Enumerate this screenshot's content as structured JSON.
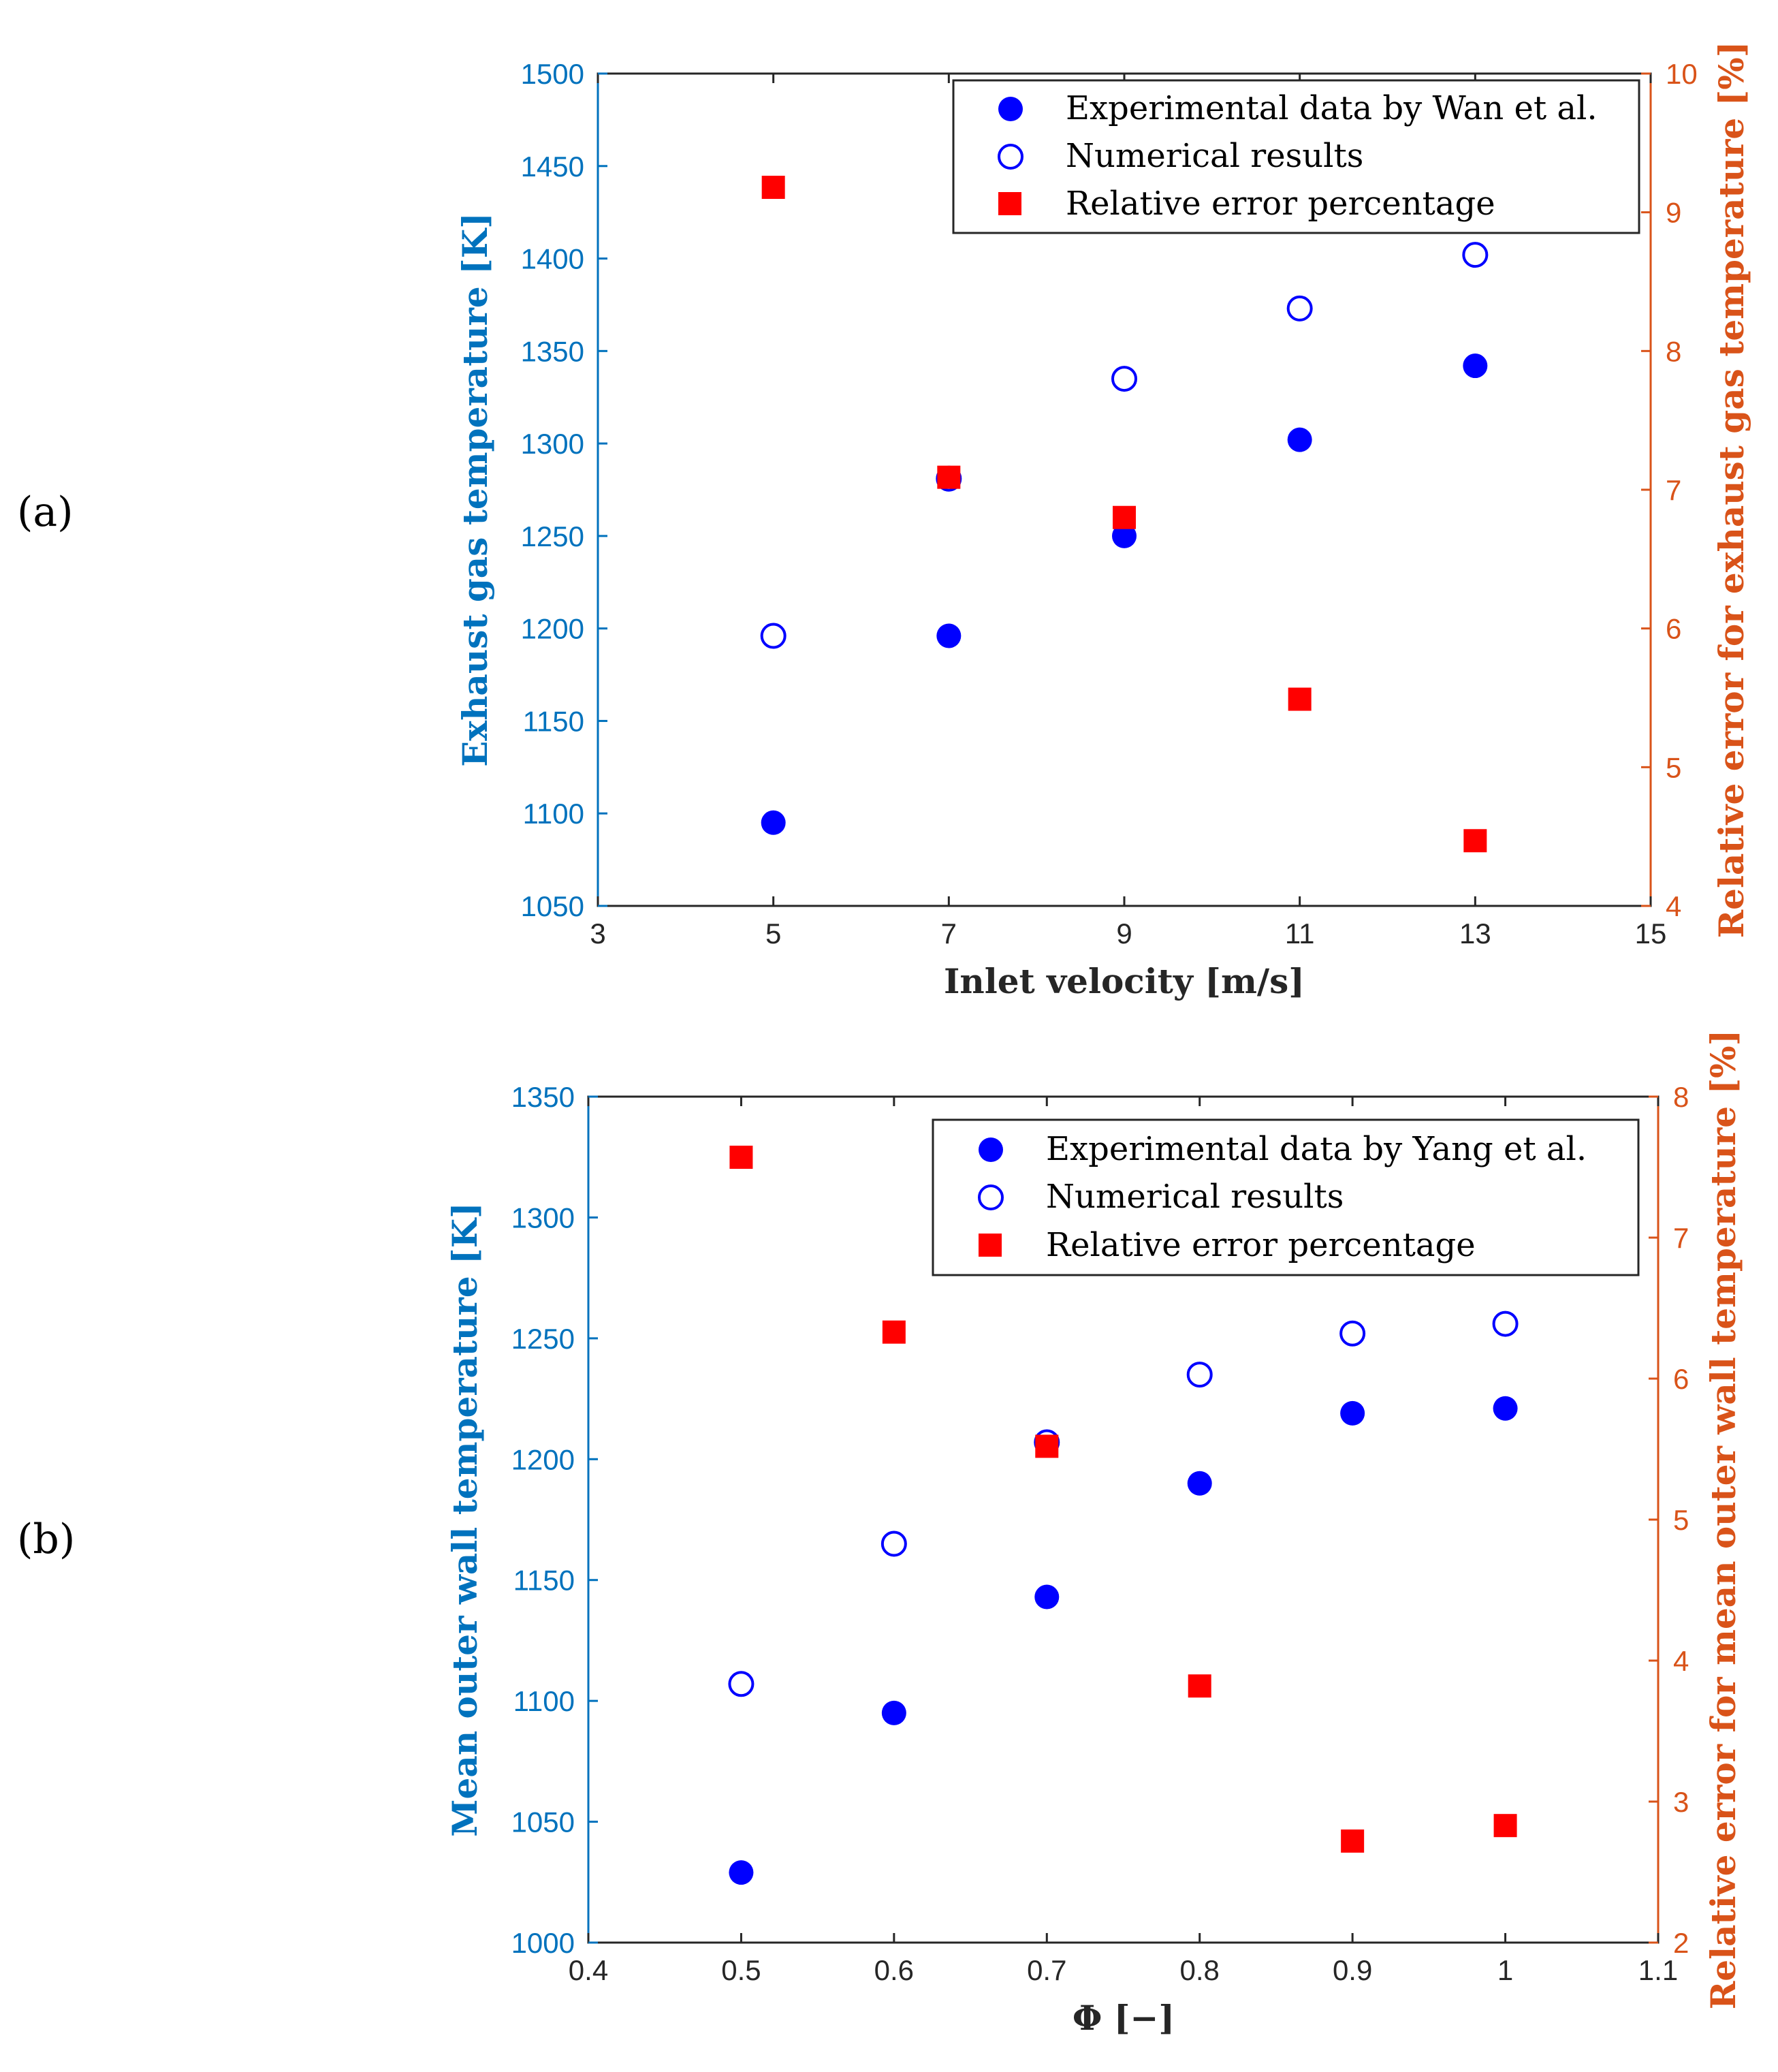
{
  "chart_data": [
    {
      "id": "a",
      "panel_label": "(a)",
      "type": "scatter",
      "colors": {
        "left_axis": "#0072BD",
        "right_axis": "#D95319",
        "x_axis": "#262626",
        "marker_blue": "#0000FF",
        "marker_red": "#FF0000"
      },
      "xlabel": "Inlet velocity [m/s]",
      "ylabel": "Exhaust gas temperature [K]",
      "y2label": "Relative error for exhaust gas temperature [%]",
      "xlim": [
        3,
        15
      ],
      "ylim": [
        1050,
        1500
      ],
      "y2lim": [
        4,
        10
      ],
      "xticks": [
        "3",
        "5",
        "7",
        "9",
        "11",
        "13",
        "15"
      ],
      "yticks": [
        "1050",
        "1100",
        "1150",
        "1200",
        "1250",
        "1300",
        "1350",
        "1400",
        "1450",
        "1500"
      ],
      "y2ticks": [
        "4",
        "5",
        "6",
        "7",
        "8",
        "9",
        "10"
      ],
      "legend_position": "top-right",
      "series": [
        {
          "name": "Experimental data by Wan et al.",
          "marker": "filled-circle",
          "axis": "left",
          "x": [
            5,
            7,
            9,
            11,
            13
          ],
          "y": [
            1095,
            1196,
            1250,
            1302,
            1342
          ]
        },
        {
          "name": "Numerical results",
          "marker": "open-circle",
          "axis": "left",
          "x": [
            5,
            7,
            9,
            11,
            13
          ],
          "y": [
            1196,
            1281,
            1335,
            1373,
            1402
          ]
        },
        {
          "name": "Relative error percentage",
          "marker": "square",
          "axis": "right",
          "x": [
            5,
            7,
            9,
            11,
            13
          ],
          "y": [
            9.18,
            7.09,
            6.8,
            5.49,
            4.47
          ]
        }
      ]
    },
    {
      "id": "b",
      "panel_label": "(b)",
      "type": "scatter",
      "colors": {
        "left_axis": "#0072BD",
        "right_axis": "#D95319",
        "x_axis": "#262626",
        "marker_blue": "#0000FF",
        "marker_red": "#FF0000"
      },
      "xlabel": "Φ [−]",
      "ylabel": "Mean outer wall temperature [K]",
      "y2label": "Relative error for mean outer wall temperature [%]",
      "xlim": [
        0.4,
        1.1
      ],
      "ylim": [
        1000,
        1350
      ],
      "y2lim": [
        2,
        8
      ],
      "xticks": [
        "0.4",
        "0.5",
        "0.6",
        "0.7",
        "0.8",
        "0.9",
        "1",
        "1.1"
      ],
      "yticks": [
        "1000",
        "1050",
        "1100",
        "1150",
        "1200",
        "1250",
        "1300",
        "1350"
      ],
      "y2ticks": [
        "2",
        "3",
        "4",
        "5",
        "6",
        "7",
        "8"
      ],
      "legend_position": "top-right",
      "series": [
        {
          "name": "Experimental data by Yang et al.",
          "marker": "filled-circle",
          "axis": "left",
          "x": [
            0.5,
            0.6,
            0.7,
            0.8,
            0.9,
            1.0
          ],
          "y": [
            1029,
            1095,
            1143,
            1190,
            1219,
            1221
          ]
        },
        {
          "name": "Numerical results",
          "marker": "open-circle",
          "axis": "left",
          "x": [
            0.5,
            0.6,
            0.7,
            0.8,
            0.9,
            1.0
          ],
          "y": [
            1107,
            1165,
            1207,
            1235,
            1252,
            1256
          ]
        },
        {
          "name": "Relative error percentage",
          "marker": "square",
          "axis": "right",
          "x": [
            0.5,
            0.6,
            0.7,
            0.8,
            0.9,
            1.0
          ],
          "y": [
            7.57,
            6.33,
            5.52,
            3.82,
            2.72,
            2.83
          ]
        }
      ]
    }
  ]
}
